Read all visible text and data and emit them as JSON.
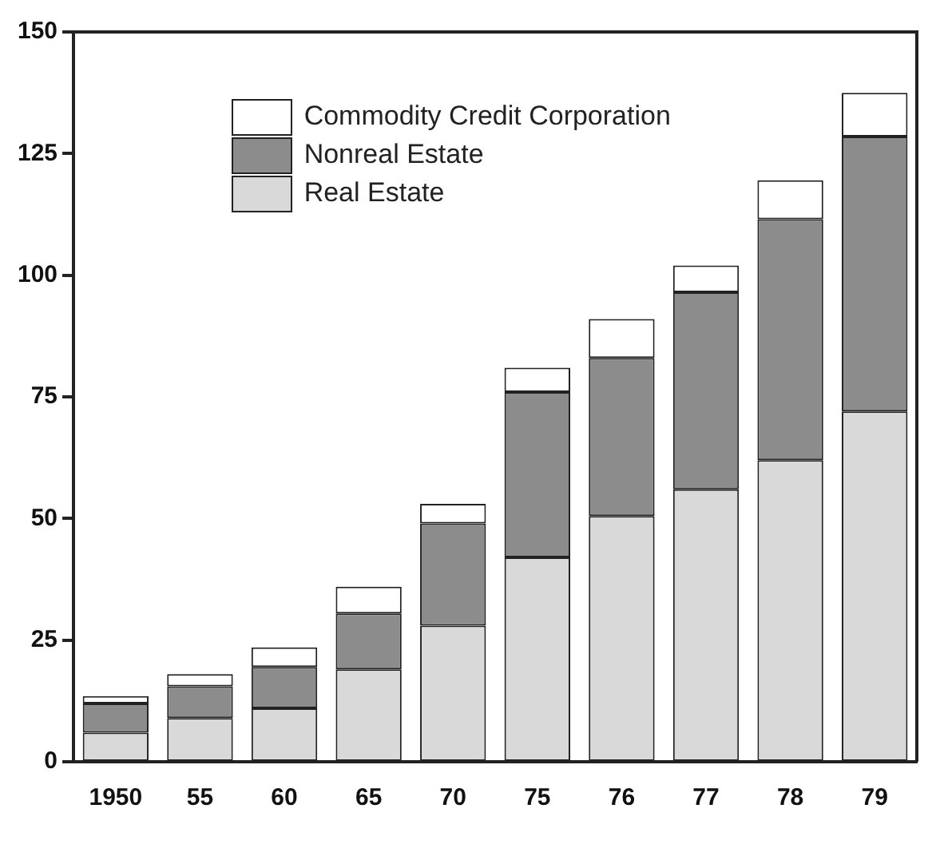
{
  "chart_data": {
    "type": "bar",
    "stacked": true,
    "categories": [
      "1950",
      "55",
      "60",
      "65",
      "70",
      "75",
      "76",
      "77",
      "78",
      "79"
    ],
    "series": [
      {
        "name": "Real Estate",
        "color": "#d9d9d9",
        "values": [
          6,
          9,
          11,
          19,
          28,
          42,
          50.5,
          56,
          62,
          72
        ]
      },
      {
        "name": "Nonreal Estate",
        "color": "#8c8c8c",
        "values": [
          6,
          6.5,
          8.5,
          11.5,
          21,
          34,
          32.5,
          40.5,
          49.5,
          56.5
        ]
      },
      {
        "name": "Commodity Credit Corporation",
        "color": "#ffffff",
        "values": [
          1.5,
          2.5,
          4,
          5.5,
          4,
          5,
          8,
          5.5,
          8,
          9
        ]
      }
    ],
    "ylim": [
      0,
      150
    ],
    "yticks": [
      0,
      25,
      50,
      75,
      100,
      125,
      150
    ],
    "grid": false,
    "legend": "top left"
  }
}
